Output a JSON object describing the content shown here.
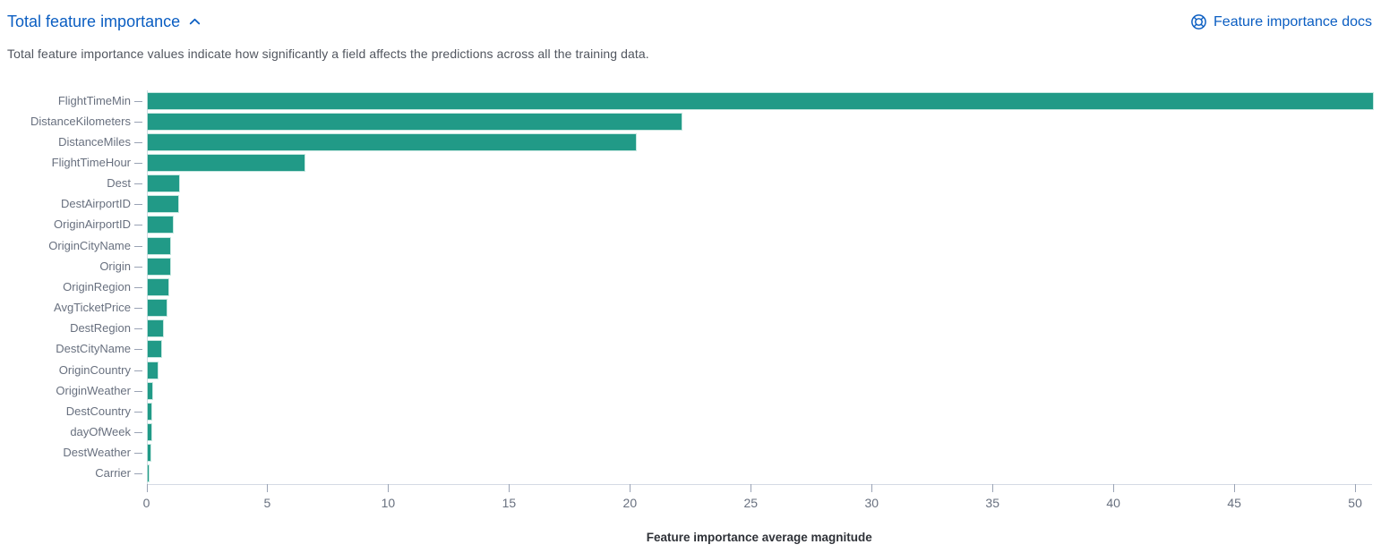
{
  "header": {
    "title": "Total feature importance",
    "collapse_icon": "chevron-up-icon",
    "docs_link": {
      "icon": "help-ring-icon",
      "label": "Feature importance docs"
    }
  },
  "description": "Total feature importance values indicate how significantly a field affects the predictions across all the training data.",
  "colors": {
    "link_blue": "#0b5ec2",
    "bar_teal": "#219a87",
    "axis_gray": "#d4dae4",
    "label_gray": "#68707f"
  },
  "chart_data": {
    "type": "bar",
    "orientation": "horizontal",
    "title": "",
    "xlabel": "Feature importance average magnitude",
    "ylabel": "",
    "grid": false,
    "legend": "none",
    "xlim": [
      0,
      50.7
    ],
    "x_ticks": [
      0,
      5,
      10,
      15,
      20,
      25,
      30,
      35,
      40,
      45,
      50
    ],
    "categories": [
      "FlightTimeMin",
      "DistanceKilometers",
      "DistanceMiles",
      "FlightTimeHour",
      "Dest",
      "DestAirportID",
      "OriginAirportID",
      "OriginCityName",
      "Origin",
      "OriginRegion",
      "AvgTicketPrice",
      "DestRegion",
      "DestCityName",
      "OriginCountry",
      "OriginWeather",
      "DestCountry",
      "dayOfWeek",
      "DestWeather",
      "Carrier"
    ],
    "values": [
      50.7,
      22.1,
      20.2,
      6.5,
      1.32,
      1.28,
      1.05,
      0.96,
      0.93,
      0.86,
      0.8,
      0.66,
      0.57,
      0.41,
      0.19,
      0.16,
      0.16,
      0.12,
      0.05
    ]
  }
}
